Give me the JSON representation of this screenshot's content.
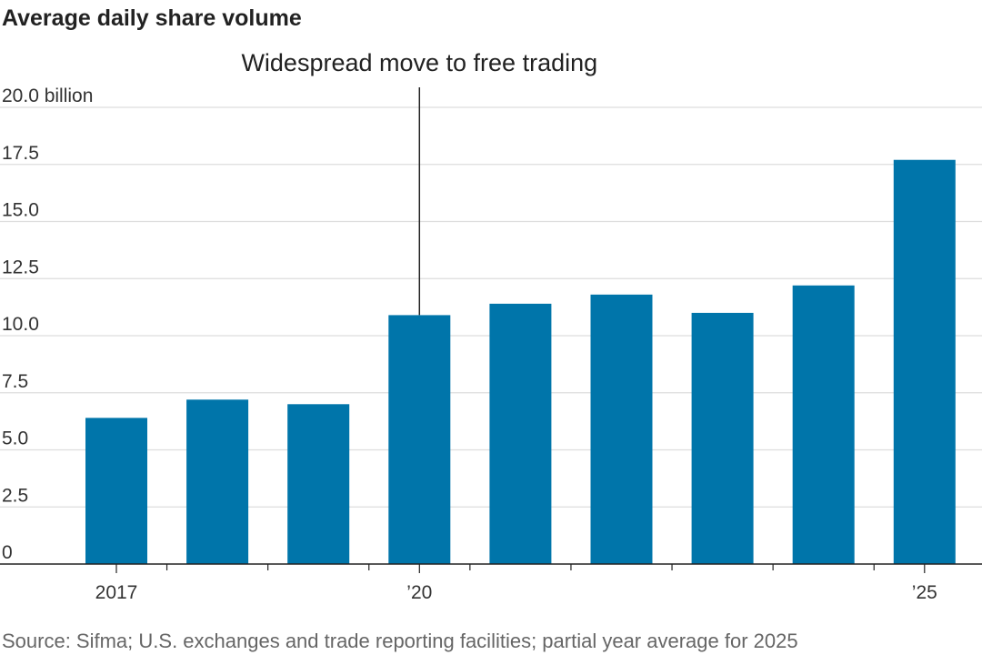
{
  "chart_data": {
    "type": "bar",
    "title": "Average daily share volume",
    "categories": [
      "2017",
      "2018",
      "2019",
      "2020",
      "2021",
      "2022",
      "2023",
      "2024",
      "2025"
    ],
    "values": [
      6.4,
      7.2,
      7.0,
      10.9,
      11.4,
      11.8,
      11.0,
      12.2,
      17.7
    ],
    "ylim": [
      0,
      20
    ],
    "yticks": [
      0,
      2.5,
      5.0,
      7.5,
      10.0,
      12.5,
      15.0,
      17.5,
      20.0
    ],
    "ytick_labels": [
      "0",
      "2.5",
      "5.0",
      "7.5",
      "10.0",
      "12.5",
      "15.0",
      "17.5",
      "20.0 billion"
    ],
    "xtick_labels": [
      {
        "category": "2017",
        "label": "2017"
      },
      {
        "category": "2020",
        "label": "’20"
      },
      {
        "category": "2025",
        "label": "’25"
      }
    ],
    "grid": true,
    "bar_color": "#0075aa",
    "annotation": {
      "text": "Widespread move to free trading",
      "category": "2020"
    },
    "source": "Source: Sifma; U.S. exchanges and trade reporting facilities; partial year average for 2025"
  }
}
